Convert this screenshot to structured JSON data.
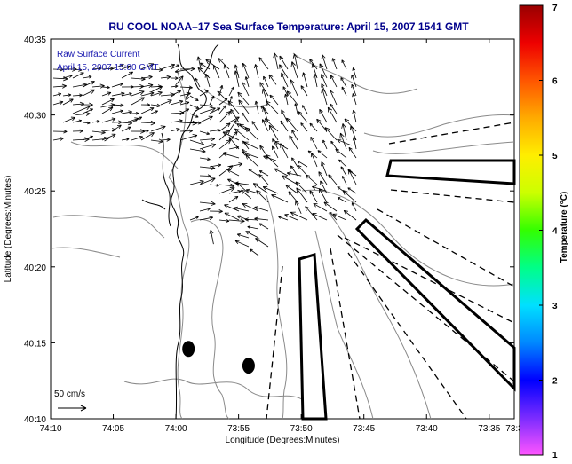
{
  "chart_data": {
    "type": "vector-field-map",
    "title": "RU COOL  NOAA–17  Sea Surface Temperature:  April 15, 2007 1541 GMT",
    "xlabel": "Longitude (Degrees:Minutes)",
    "ylabel": "Latitude (Degrees:Minutes)",
    "xlim_minutes_west": [
      250,
      213
    ],
    "ylim_minutes_north": [
      2410,
      2435
    ],
    "x_ticks": [
      {
        "min": 250,
        "label": "74:10"
      },
      {
        "min": 245,
        "label": "74:05"
      },
      {
        "min": 240,
        "label": "74:00"
      },
      {
        "min": 235,
        "label": "73:55"
      },
      {
        "min": 230,
        "label": "73:50"
      },
      {
        "min": 225,
        "label": "73:45"
      },
      {
        "min": 220,
        "label": "73:40"
      },
      {
        "min": 215,
        "label": "73:35"
      },
      {
        "min": 213,
        "label": "73:3"
      }
    ],
    "y_ticks": [
      {
        "min": 2410,
        "label": "40:10"
      },
      {
        "min": 2415,
        "label": "40:15"
      },
      {
        "min": 2420,
        "label": "40:20"
      },
      {
        "min": 2425,
        "label": "40:25"
      },
      {
        "min": 2430,
        "label": "40:30"
      },
      {
        "min": 2435,
        "label": "40:35"
      }
    ],
    "legend": {
      "title": "Raw Surface Current",
      "subtitle": "April 15, 2007 15:00 GMT",
      "scale_label": "50 cm/s"
    },
    "colorbar": {
      "label": "Temperature (°C)",
      "min": 1,
      "max": 7,
      "ticks": [
        "1",
        "2",
        "3",
        "4",
        "5",
        "6",
        "7"
      ],
      "colors": [
        "#ff55ff",
        "#7a2bff",
        "#0000ff",
        "#0088ff",
        "#00e0ff",
        "#00ff88",
        "#33ff00",
        "#ccff00",
        "#ffee00",
        "#ffaa00",
        "#ff5500",
        "#ee0000",
        "#990000"
      ]
    },
    "stations": [
      {
        "lon_min": 239.0,
        "lat_min": 2414.6
      },
      {
        "lon_min": 234.2,
        "lat_min": 2413.5
      }
    ],
    "sample_current_vectors": [
      {
        "lon_min": 248,
        "lat_min": 2430.0,
        "u": 1.0,
        "v": 0.1
      },
      {
        "lon_min": 246,
        "lat_min": 2430.5,
        "u": 1.0,
        "v": 0.2
      },
      {
        "lon_min": 244,
        "lat_min": 2429.5,
        "u": 0.9,
        "v": 0.3
      },
      {
        "lon_min": 242,
        "lat_min": 2431.5,
        "u": 0.8,
        "v": 0.4
      },
      {
        "lon_min": 240,
        "lat_min": 2432.0,
        "u": 0.5,
        "v": 0.6
      },
      {
        "lon_min": 238,
        "lat_min": 2433.0,
        "u": -0.2,
        "v": 0.9
      },
      {
        "lon_min": 236,
        "lat_min": 2431.0,
        "u": -0.6,
        "v": 0.6
      },
      {
        "lon_min": 234,
        "lat_min": 2429.0,
        "u": -0.8,
        "v": 0.4
      },
      {
        "lon_min": 232,
        "lat_min": 2427.0,
        "u": -0.9,
        "v": 0.3
      },
      {
        "lon_min": 230,
        "lat_min": 2426.0,
        "u": -1.0,
        "v": 0.2
      },
      {
        "lon_min": 228,
        "lat_min": 2425.0,
        "u": -1.0,
        "v": 0.3
      },
      {
        "lon_min": 226,
        "lat_min": 2428.0,
        "u": -1.0,
        "v": 0.4
      },
      {
        "lon_min": 234,
        "lat_min": 2424.5,
        "u": -0.7,
        "v": 0.6
      },
      {
        "lon_min": 230,
        "lat_min": 2423.5,
        "u": -0.4,
        "v": 0.9
      },
      {
        "lon_min": 237,
        "lat_min": 2421.5,
        "u": -0.2,
        "v": 1.0
      },
      {
        "lon_min": 232,
        "lat_min": 2432.0,
        "u": -0.5,
        "v": 0.7
      }
    ]
  }
}
